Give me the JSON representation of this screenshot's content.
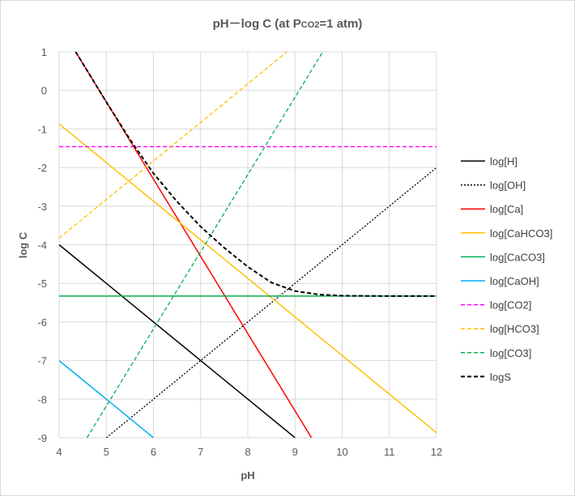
{
  "chart_data": {
    "type": "line",
    "title": "pH－log C (at P",
    "title_sub": "CO2",
    "title_end": "=1 atm)",
    "xlabel": "pH",
    "ylabel": "log C",
    "xlim": [
      4,
      12
    ],
    "ylim": [
      -9,
      1
    ],
    "x_ticks": [
      "4",
      "5",
      "6",
      "7",
      "8",
      "9",
      "10",
      "11",
      "12"
    ],
    "y_ticks": [
      "1",
      "0",
      "-1",
      "-2",
      "-3",
      "-4",
      "-5",
      "-6",
      "-7",
      "-8",
      "-9"
    ],
    "grid": true,
    "legend": "right",
    "series": [
      {
        "name": "log[H]",
        "color": "#000000",
        "dash": "solid",
        "x": [
          4,
          9
        ],
        "y": [
          -4,
          -9
        ]
      },
      {
        "name": "log[OH]",
        "color": "#000000",
        "dash": "dotted",
        "x": [
          5,
          12
        ],
        "y": [
          -9,
          -2
        ]
      },
      {
        "name": "log[Ca]",
        "color": "#ff0000",
        "dash": "solid",
        "x": [
          4.35,
          9.35
        ],
        "y": [
          1,
          -9
        ]
      },
      {
        "name": "log[CaHCO3]",
        "color": "#ffc000",
        "dash": "solid",
        "x": [
          4,
          12
        ],
        "y": [
          -0.87,
          -8.87
        ]
      },
      {
        "name": "log[CaCO3]",
        "color": "#00b050",
        "dash": "solid",
        "x": [
          4,
          12
        ],
        "y": [
          -5.33,
          -5.33
        ]
      },
      {
        "name": "log[CaOH]",
        "color": "#00b0f0",
        "dash": "solid",
        "x": [
          4,
          6
        ],
        "y": [
          -7.0,
          -9.0
        ]
      },
      {
        "name": "log[CO2]",
        "color": "#ff00ff",
        "dash": "dashed",
        "x": [
          4,
          12
        ],
        "y": [
          -1.46,
          -1.46
        ]
      },
      {
        "name": "log[HCO3]",
        "color": "#ffc000",
        "dash": "dashed",
        "x": [
          4,
          8.83
        ],
        "y": [
          -3.83,
          1
        ]
      },
      {
        "name": "log[CO3]",
        "color": "#00b050",
        "dash": "dashed",
        "x": [
          4.59,
          9.59
        ],
        "y": [
          -9,
          1
        ]
      },
      {
        "name": "logS",
        "color": "#000000",
        "dash": "dashed",
        "x": [
          4.35,
          4.5,
          5.0,
          5.5,
          6.0,
          6.5,
          7.0,
          7.5,
          8.0,
          8.5,
          9.0,
          9.5,
          10.0,
          11.0,
          12.0
        ],
        "y": [
          1.0,
          0.7,
          -0.3,
          -1.27,
          -2.15,
          -2.88,
          -3.53,
          -4.08,
          -4.57,
          -4.98,
          -5.2,
          -5.29,
          -5.32,
          -5.33,
          -5.33
        ]
      }
    ]
  }
}
